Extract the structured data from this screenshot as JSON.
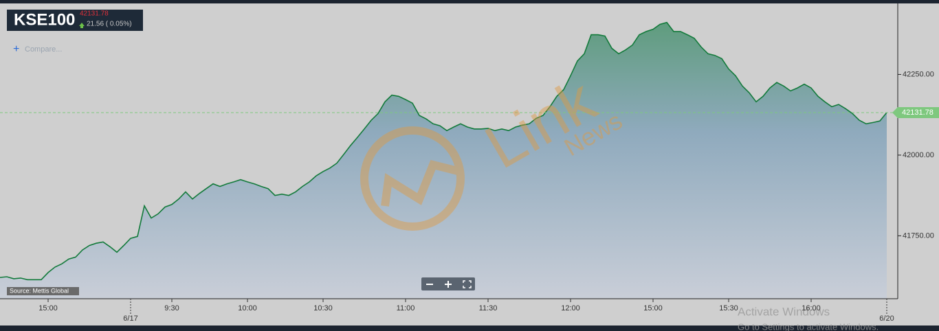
{
  "header": {
    "symbol": "KSE100",
    "price": "42131.78",
    "change": "21.56 ( 0.05%)",
    "compare": "Compare..."
  },
  "source": "Source: Mettis Global",
  "watermark": {
    "logo": "Link",
    "sub": "News"
  },
  "os_overlay": {
    "title": "Activate Windows",
    "subtitle": "Go to Settings to activate Windows."
  },
  "chart_data": {
    "type": "area",
    "color": "#127a3a",
    "categories": [
      null,
      null,
      null,
      null,
      null,
      null,
      null,
      "15:00",
      null,
      null,
      null,
      null,
      null,
      null,
      null,
      null,
      null,
      null,
      null,
      "6/17",
      null,
      null,
      null,
      null,
      null,
      "9:30",
      null,
      null,
      null,
      null,
      null,
      null,
      null,
      null,
      null,
      null,
      "10:00",
      null,
      null,
      null,
      null,
      null,
      null,
      null,
      null,
      null,
      null,
      "10:30",
      null,
      null,
      null,
      null,
      null,
      null,
      null,
      null,
      null,
      null,
      null,
      "11:00",
      null,
      null,
      null,
      null,
      null,
      null,
      null,
      null,
      null,
      null,
      null,
      "11:30",
      null,
      null,
      null,
      null,
      null,
      null,
      null,
      null,
      null,
      null,
      null,
      "12:00",
      null,
      null,
      null,
      null,
      null,
      null,
      null,
      null,
      null,
      null,
      null,
      "15:00",
      null,
      null,
      null,
      null,
      null,
      null,
      null,
      null,
      null,
      null,
      "15:30",
      null,
      null,
      null,
      null,
      null,
      null,
      null,
      null,
      null,
      null,
      null,
      "16:00",
      null,
      null,
      null,
      null,
      null,
      null,
      null,
      null,
      null,
      null,
      "6/20"
    ],
    "values": [
      41621,
      41623,
      41617,
      41619,
      41614,
      41614,
      41614,
      41636,
      41653,
      41663,
      41678,
      41684,
      41706,
      41720,
      41727,
      41731,
      41716,
      41699,
      41720,
      41742,
      41748,
      41843,
      41805,
      41818,
      41839,
      41847,
      41864,
      41886,
      41864,
      41881,
      41896,
      41911,
      41903,
      41911,
      41917,
      41924,
      41917,
      41911,
      41903,
      41896,
      41875,
      41879,
      41875,
      41886,
      41903,
      41917,
      41936,
      41949,
      41960,
      41975,
      42002,
      42030,
      42055,
      42081,
      42108,
      42129,
      42165,
      42186,
      42182,
      42172,
      42161,
      42123,
      42112,
      42097,
      42091,
      42076,
      42087,
      42097,
      42087,
      42081,
      42081,
      42083,
      42076,
      42081,
      42076,
      42087,
      42093,
      42097,
      42114,
      42123,
      42150,
      42182,
      42203,
      42246,
      42292,
      42314,
      42373,
      42373,
      42369,
      42331,
      42314,
      42326,
      42341,
      42373,
      42383,
      42390,
      42405,
      42411,
      42383,
      42383,
      42373,
      42362,
      42335,
      42314,
      42309,
      42299,
      42267,
      42246,
      42214,
      42193,
      42165,
      42182,
      42208,
      42225,
      42214,
      42199,
      42208,
      42220,
      42208,
      42182,
      42165,
      42150,
      42157,
      42144,
      42129,
      42108,
      42097,
      42101,
      42106,
      42131.78
    ],
    "ylim": [
      41555,
      42470
    ],
    "yticks": [
      {
        "value": 41750,
        "label": "41750.00"
      },
      {
        "value": 42000,
        "label": "42000.00"
      },
      {
        "value": 42250,
        "label": "42250.00"
      }
    ],
    "last_price": {
      "value": 42131.78,
      "label": "42131.78"
    }
  }
}
